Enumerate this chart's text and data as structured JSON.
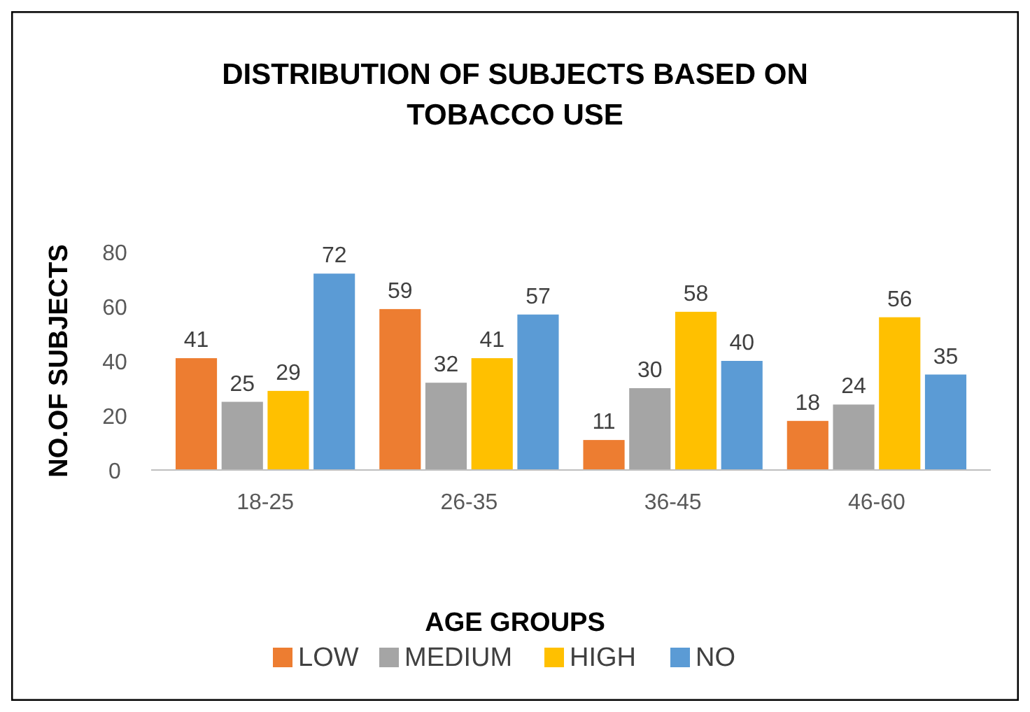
{
  "chart_data": {
    "type": "bar",
    "title": "DISTRIBUTION OF SUBJECTS BASED ON TOBACCO USE",
    "xlabel": "AGE GROUPS",
    "ylabel": "NO.OF SUBJECTS",
    "categories": [
      "18-25",
      "26-35",
      "36-45",
      "46-60"
    ],
    "series": [
      {
        "name": "LOW",
        "color": "#ed7d31",
        "values": [
          41,
          59,
          11,
          18
        ]
      },
      {
        "name": "MEDIUM",
        "color": "#a5a5a5",
        "values": [
          25,
          32,
          30,
          24
        ]
      },
      {
        "name": "HIGH",
        "color": "#ffc000",
        "values": [
          29,
          41,
          58,
          56
        ]
      },
      {
        "name": "NO",
        "color": "#5b9bd5",
        "values": [
          72,
          57,
          40,
          35
        ]
      }
    ],
    "ylim": [
      0,
      80
    ],
    "yticks": [
      0,
      20,
      40,
      60,
      80
    ],
    "grid": false,
    "legend": "bottom",
    "data_labels": true
  }
}
